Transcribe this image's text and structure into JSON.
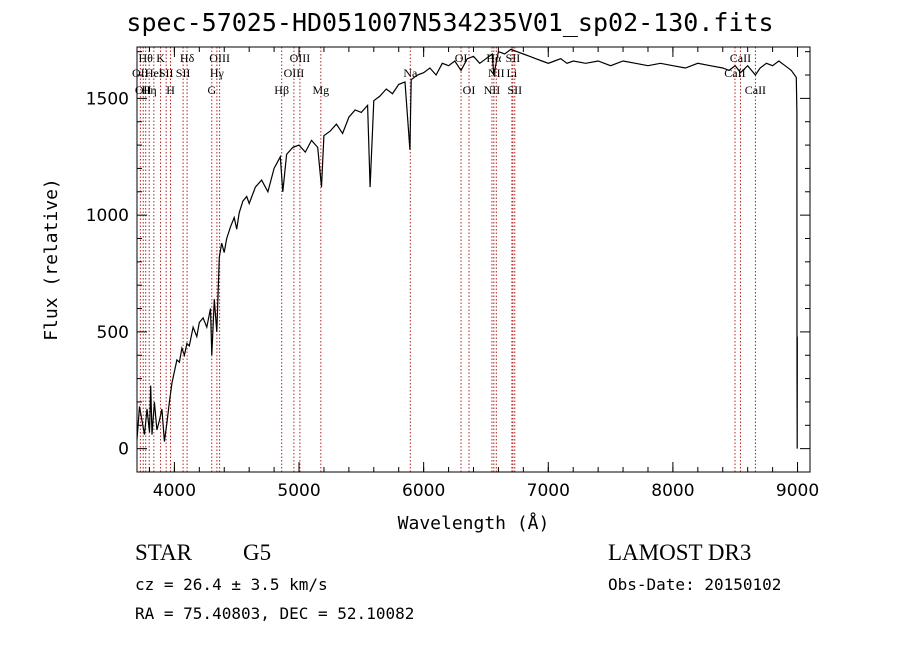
{
  "chart_data": {
    "type": "line",
    "title": "spec-57025-HD051007N534235V01_sp02-130.fits",
    "xlabel": "Wavelength (Å)",
    "ylabel": "Flux (relative)",
    "xlim": [
      3700,
      9100
    ],
    "ylim": [
      -100,
      1720
    ],
    "x_ticks": [
      4000,
      5000,
      6000,
      7000,
      8000,
      9000
    ],
    "y_ticks": [
      0,
      500,
      1000,
      1500
    ],
    "series": [
      {
        "points": [
          [
            3700,
            40
          ],
          [
            3720,
            180
          ],
          [
            3740,
            120
          ],
          [
            3760,
            60
          ],
          [
            3780,
            170
          ],
          [
            3800,
            70
          ],
          [
            3810,
            270
          ],
          [
            3820,
            60
          ],
          [
            3840,
            200
          ],
          [
            3860,
            80
          ],
          [
            3880,
            120
          ],
          [
            3900,
            170
          ],
          [
            3920,
            30
          ],
          [
            3940,
            110
          ],
          [
            3960,
            200
          ],
          [
            3980,
            280
          ],
          [
            4000,
            330
          ],
          [
            4020,
            380
          ],
          [
            4040,
            370
          ],
          [
            4060,
            430
          ],
          [
            4080,
            400
          ],
          [
            4100,
            450
          ],
          [
            4120,
            440
          ],
          [
            4150,
            520
          ],
          [
            4180,
            480
          ],
          [
            4200,
            540
          ],
          [
            4230,
            560
          ],
          [
            4260,
            520
          ],
          [
            4290,
            600
          ],
          [
            4300,
            400
          ],
          [
            4320,
            640
          ],
          [
            4340,
            500
          ],
          [
            4360,
            820
          ],
          [
            4380,
            880
          ],
          [
            4400,
            840
          ],
          [
            4420,
            900
          ],
          [
            4450,
            950
          ],
          [
            4480,
            990
          ],
          [
            4500,
            940
          ],
          [
            4520,
            1010
          ],
          [
            4550,
            1060
          ],
          [
            4580,
            1080
          ],
          [
            4600,
            1050
          ],
          [
            4650,
            1120
          ],
          [
            4700,
            1150
          ],
          [
            4750,
            1100
          ],
          [
            4800,
            1200
          ],
          [
            4850,
            1250
          ],
          [
            4870,
            1100
          ],
          [
            4900,
            1260
          ],
          [
            4950,
            1290
          ],
          [
            5000,
            1300
          ],
          [
            5050,
            1270
          ],
          [
            5100,
            1320
          ],
          [
            5150,
            1290
          ],
          [
            5180,
            1120
          ],
          [
            5200,
            1340
          ],
          [
            5250,
            1360
          ],
          [
            5300,
            1390
          ],
          [
            5350,
            1350
          ],
          [
            5400,
            1420
          ],
          [
            5450,
            1450
          ],
          [
            5500,
            1440
          ],
          [
            5550,
            1470
          ],
          [
            5570,
            1120
          ],
          [
            5600,
            1490
          ],
          [
            5650,
            1510
          ],
          [
            5700,
            1540
          ],
          [
            5750,
            1520
          ],
          [
            5800,
            1560
          ],
          [
            5850,
            1570
          ],
          [
            5890,
            1280
          ],
          [
            5900,
            1580
          ],
          [
            5950,
            1600
          ],
          [
            6000,
            1610
          ],
          [
            6050,
            1630
          ],
          [
            6100,
            1600
          ],
          [
            6150,
            1650
          ],
          [
            6200,
            1640
          ],
          [
            6250,
            1660
          ],
          [
            6300,
            1620
          ],
          [
            6350,
            1670
          ],
          [
            6400,
            1680
          ],
          [
            6450,
            1650
          ],
          [
            6500,
            1670
          ],
          [
            6550,
            1690
          ],
          [
            6563,
            1600
          ],
          [
            6600,
            1700
          ],
          [
            6650,
            1690
          ],
          [
            6700,
            1710
          ],
          [
            6750,
            1700
          ],
          [
            6800,
            1690
          ],
          [
            6850,
            1680
          ],
          [
            6900,
            1670
          ],
          [
            6950,
            1660
          ],
          [
            7000,
            1650
          ],
          [
            7050,
            1660
          ],
          [
            7100,
            1670
          ],
          [
            7150,
            1650
          ],
          [
            7200,
            1660
          ],
          [
            7300,
            1650
          ],
          [
            7400,
            1660
          ],
          [
            7500,
            1640
          ],
          [
            7600,
            1660
          ],
          [
            7700,
            1650
          ],
          [
            7800,
            1640
          ],
          [
            7900,
            1650
          ],
          [
            8000,
            1640
          ],
          [
            8100,
            1630
          ],
          [
            8200,
            1650
          ],
          [
            8300,
            1640
          ],
          [
            8400,
            1630
          ],
          [
            8450,
            1620
          ],
          [
            8500,
            1640
          ],
          [
            8542,
            1610
          ],
          [
            8600,
            1640
          ],
          [
            8662,
            1600
          ],
          [
            8700,
            1630
          ],
          [
            8750,
            1650
          ],
          [
            8800,
            1640
          ],
          [
            8850,
            1660
          ],
          [
            8900,
            1640
          ],
          [
            8950,
            1620
          ],
          [
            8990,
            1590
          ],
          [
            8995,
            1440
          ],
          [
            8996,
            330
          ],
          [
            8997,
            0
          ],
          [
            8998,
            480
          ]
        ]
      }
    ],
    "lines": [
      {
        "wavelength": 3727,
        "label": "OII",
        "row": 2
      },
      {
        "wavelength": 3750,
        "label": "OII",
        "row": 3
      },
      {
        "wavelength": 3770,
        "label": "Hθ",
        "row": 1
      },
      {
        "wavelength": 3798,
        "label": "Hη",
        "row": 3
      },
      {
        "wavelength": 3835,
        "label": "HeI",
        "row": 2
      },
      {
        "wavelength": 3889,
        "label": "K",
        "row": 1
      },
      {
        "wavelength": 3934,
        "label": "SII",
        "row": 2
      },
      {
        "wavelength": 3969,
        "label": "H",
        "row": 3
      },
      {
        "wavelength": 4102,
        "label": "Hδ",
        "row": 1
      },
      {
        "wavelength": 4070,
        "label": "SII",
        "row": 2
      },
      {
        "wavelength": 4300,
        "label": "G",
        "row": 3
      },
      {
        "wavelength": 4341,
        "label": "Hγ",
        "row": 2
      },
      {
        "wavelength": 4363,
        "label": "OIII",
        "row": 1
      },
      {
        "wavelength": 4861,
        "label": "Hβ",
        "row": 3
      },
      {
        "wavelength": 4959,
        "label": "OIII",
        "row": 2
      },
      {
        "wavelength": 5007,
        "label": "OIII",
        "row": 1
      },
      {
        "wavelength": 5175,
        "label": "Mg",
        "row": 3
      },
      {
        "wavelength": 5893,
        "label": "Na",
        "row": 2
      },
      {
        "wavelength": 6300,
        "label": "OI",
        "row": 1
      },
      {
        "wavelength": 6364,
        "label": "OI",
        "row": 3
      },
      {
        "wavelength": 6548,
        "label": "NII",
        "row": 3
      },
      {
        "wavelength": 6563,
        "label": "Hα",
        "row": 1
      },
      {
        "wavelength": 6583,
        "label": "NII",
        "row": 2
      },
      {
        "wavelength": 6708,
        "label": "Li",
        "row": 2
      },
      {
        "wavelength": 6716,
        "label": "SII",
        "row": 1
      },
      {
        "wavelength": 6731,
        "label": "SII",
        "row": 3
      },
      {
        "wavelength": 8498,
        "label": "CaII",
        "row": 2
      },
      {
        "wavelength": 8542,
        "label": "CaII",
        "row": 1
      },
      {
        "wavelength": 8662,
        "label": "CaII",
        "row": 3
      }
    ],
    "line_color": "#b22222",
    "grid": false,
    "legend": "none"
  },
  "info": {
    "class": "STAR",
    "subclass": "G5",
    "survey": "LAMOST DR3",
    "cz": "cz = 26.4 ± 3.5 km/s",
    "obs_date": "Obs-Date: 20150102",
    "coords": "RA =  75.40803, DEC =  52.10082"
  }
}
